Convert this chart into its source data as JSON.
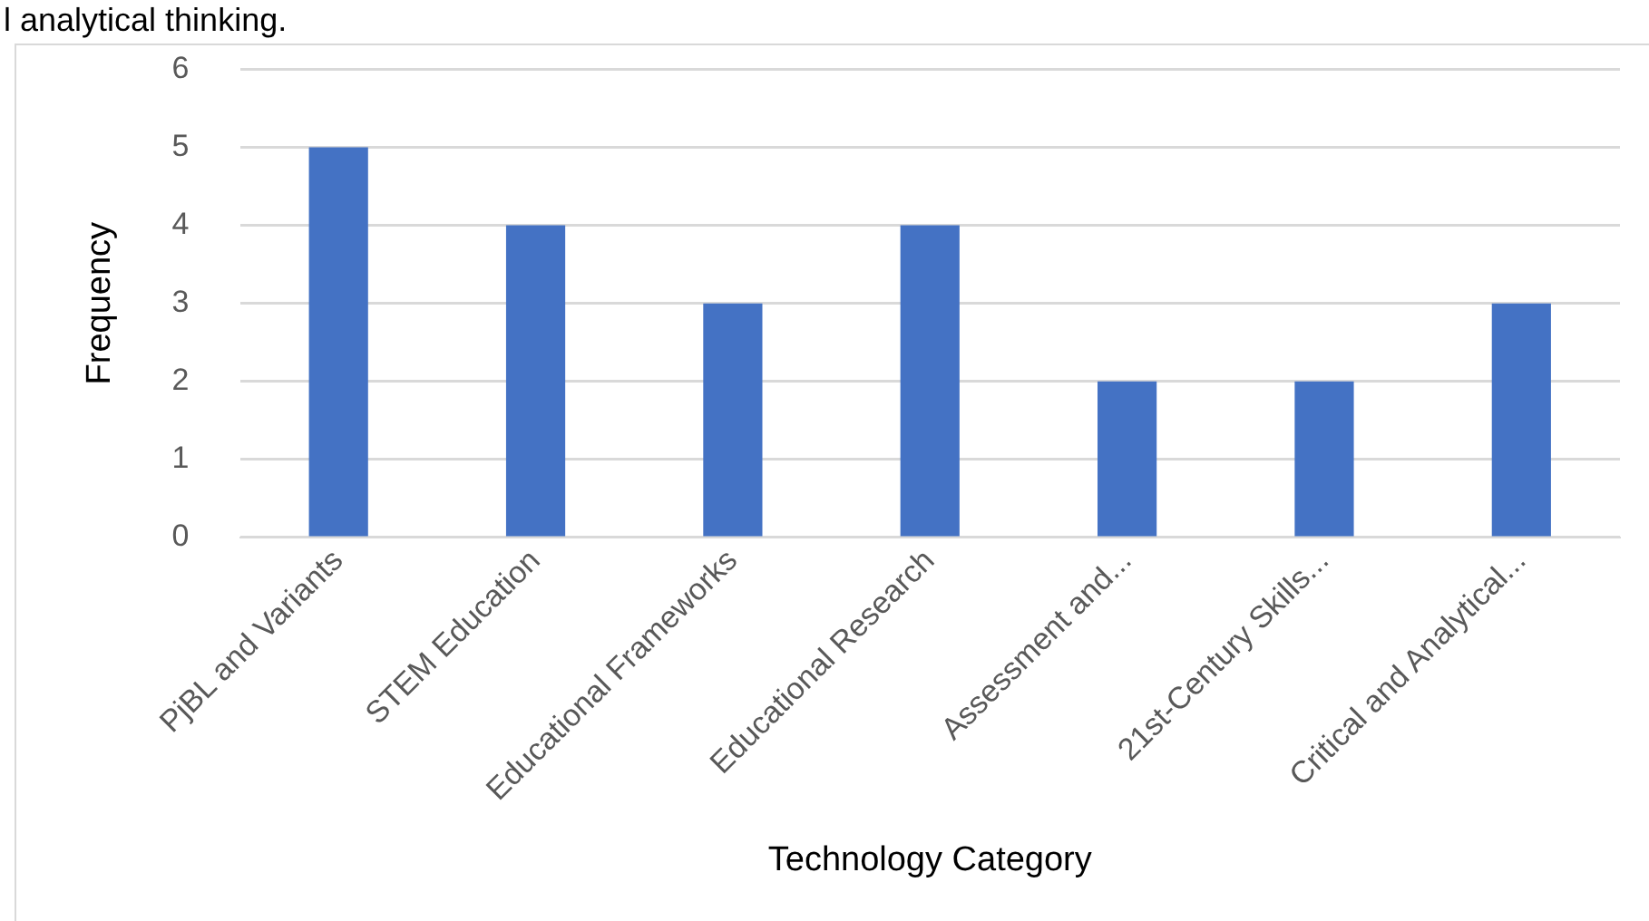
{
  "chart_data": {
    "type": "bar",
    "xlabel": "Technology Category",
    "ylabel": "Frequency",
    "categories": [
      "PjBL and Variants",
      "STEM Education",
      "Educational Frameworks",
      "Educational Research",
      "Assessment and...",
      "21st-Century Skills...",
      "Critical and Analytical..."
    ],
    "values": [
      5,
      4,
      3,
      4,
      2,
      2,
      3
    ],
    "color": "#4472c4",
    "ylim": [
      0,
      6
    ],
    "yticks": [
      0,
      1,
      2,
      3,
      4,
      5,
      6
    ],
    "grid": "y",
    "legend": false,
    "annotations": [
      "l analytical thinking."
    ]
  }
}
